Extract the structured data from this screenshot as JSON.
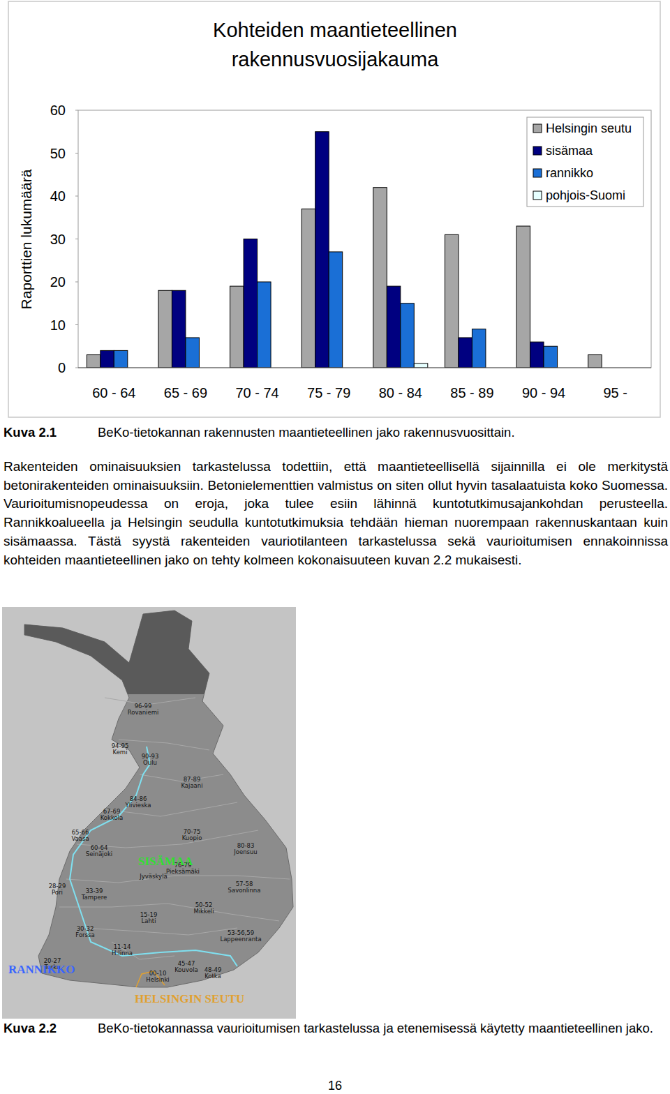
{
  "chart_data": {
    "type": "bar",
    "title": "Kohteiden maantieteellinen rakennusvuosijakauma",
    "y_label": "Raporttien lukumäärä",
    "categories": [
      "60 - 64",
      "65 - 69",
      "70 - 74",
      "75 - 79",
      "80 - 84",
      "85 - 89",
      "90 - 94",
      "95 -"
    ],
    "series": [
      {
        "name": "Helsingin seutu",
        "color": "#a6a6a6",
        "values": [
          3,
          18,
          19,
          37,
          42,
          31,
          33,
          3
        ]
      },
      {
        "name": "sisämaa",
        "color": "#000080",
        "values": [
          4,
          18,
          30,
          55,
          19,
          7,
          6,
          null
        ]
      },
      {
        "name": "rannikko",
        "color": "#1a6fd6",
        "values": [
          4,
          7,
          20,
          27,
          15,
          9,
          5,
          null
        ]
      },
      {
        "name": "pohjois-Suomi",
        "color": "#e6ffff",
        "values": [
          null,
          null,
          null,
          null,
          1,
          null,
          null,
          null
        ]
      }
    ],
    "ylim": [
      0,
      60
    ],
    "yticks": [
      0,
      10,
      20,
      30,
      40,
      50,
      60
    ],
    "grid": false,
    "legend": "top-right"
  },
  "figure_1": {
    "label": "Kuva 2.1",
    "caption": "BeKo-tietokannan rakennusten maantieteellinen jako rakennusvuosittain."
  },
  "paragraph": "Rakenteiden ominaisuuksien tarkastelussa todettiin, että maantieteellisellä sijainnilla ei ole merkitystä betonirakenteiden ominaisuuksiin. Betonielementtien valmistus on siten ollut hyvin tasalaatuista koko Suomessa. Vaurioitumisnopeudessa on eroja, joka tulee esiin lähinnä kuntotutkimusajankohdan perusteella. Rannikkoalueella ja Helsingin seudulla kuntotutkimuksia tehdään hieman nuorempaan rakennuskantaan kuin sisämaassa. Tästä syystä rakenteiden vauriotilanteen tarkastelussa sekä vaurioitumisen ennakoinnissa kohteiden maantieteellinen jako on tehty kolmeen kokonaisuuteen kuvan 2.2 mukaisesti.",
  "map": {
    "labels": [
      {
        "code": "96-99",
        "city": "Rovaniemi"
      },
      {
        "code": "94-95",
        "city": "Kemi"
      },
      {
        "code": "90-93",
        "city": "Oulu"
      },
      {
        "code": "87-89",
        "city": "Kajaani"
      },
      {
        "code": "84-86",
        "city": "Ylivieska"
      },
      {
        "code": "67-69",
        "city": "Kokkola"
      },
      {
        "code": "65-66",
        "city": "Vaasa"
      },
      {
        "code": "60-64",
        "city": "Seinäjoki"
      },
      {
        "code": "70-75",
        "city": "Kuopio"
      },
      {
        "code": "80-83",
        "city": "Joensuu"
      },
      {
        "code": "76-79",
        "city": "Pieksämäki"
      },
      {
        "code": "57-58",
        "city": "Savonlinna"
      },
      {
        "code": "28-29",
        "city": "Pori"
      },
      {
        "code": "33-39",
        "city": "Tampere"
      },
      {
        "code": "15-19",
        "city": "Lahti"
      },
      {
        "code": "50-52",
        "city": "Mikkeli"
      },
      {
        "code": "30-32",
        "city": "Forssa"
      },
      {
        "code": "53-56,59",
        "city": "Lappeenranta"
      },
      {
        "code": "20-27",
        "city": "Turku"
      },
      {
        "code": "11-14",
        "city": "H:linna"
      },
      {
        "code": "45-47",
        "city": "Kouvola"
      },
      {
        "code": "00-10",
        "city": "Helsinki"
      },
      {
        "code": "48-49",
        "city": "Kotka"
      },
      {
        "city": "Jyväskylä"
      }
    ],
    "regions": [
      "SISÄMAA",
      "RANNIKKO",
      "HELSINGIN SEUTU"
    ]
  },
  "figure_2": {
    "label": "Kuva 2.2",
    "caption": "BeKo-tietokannassa vaurioitumisen tarkastelussa ja etenemisessä käytetty maantieteellinen jako."
  },
  "page_number": "16"
}
